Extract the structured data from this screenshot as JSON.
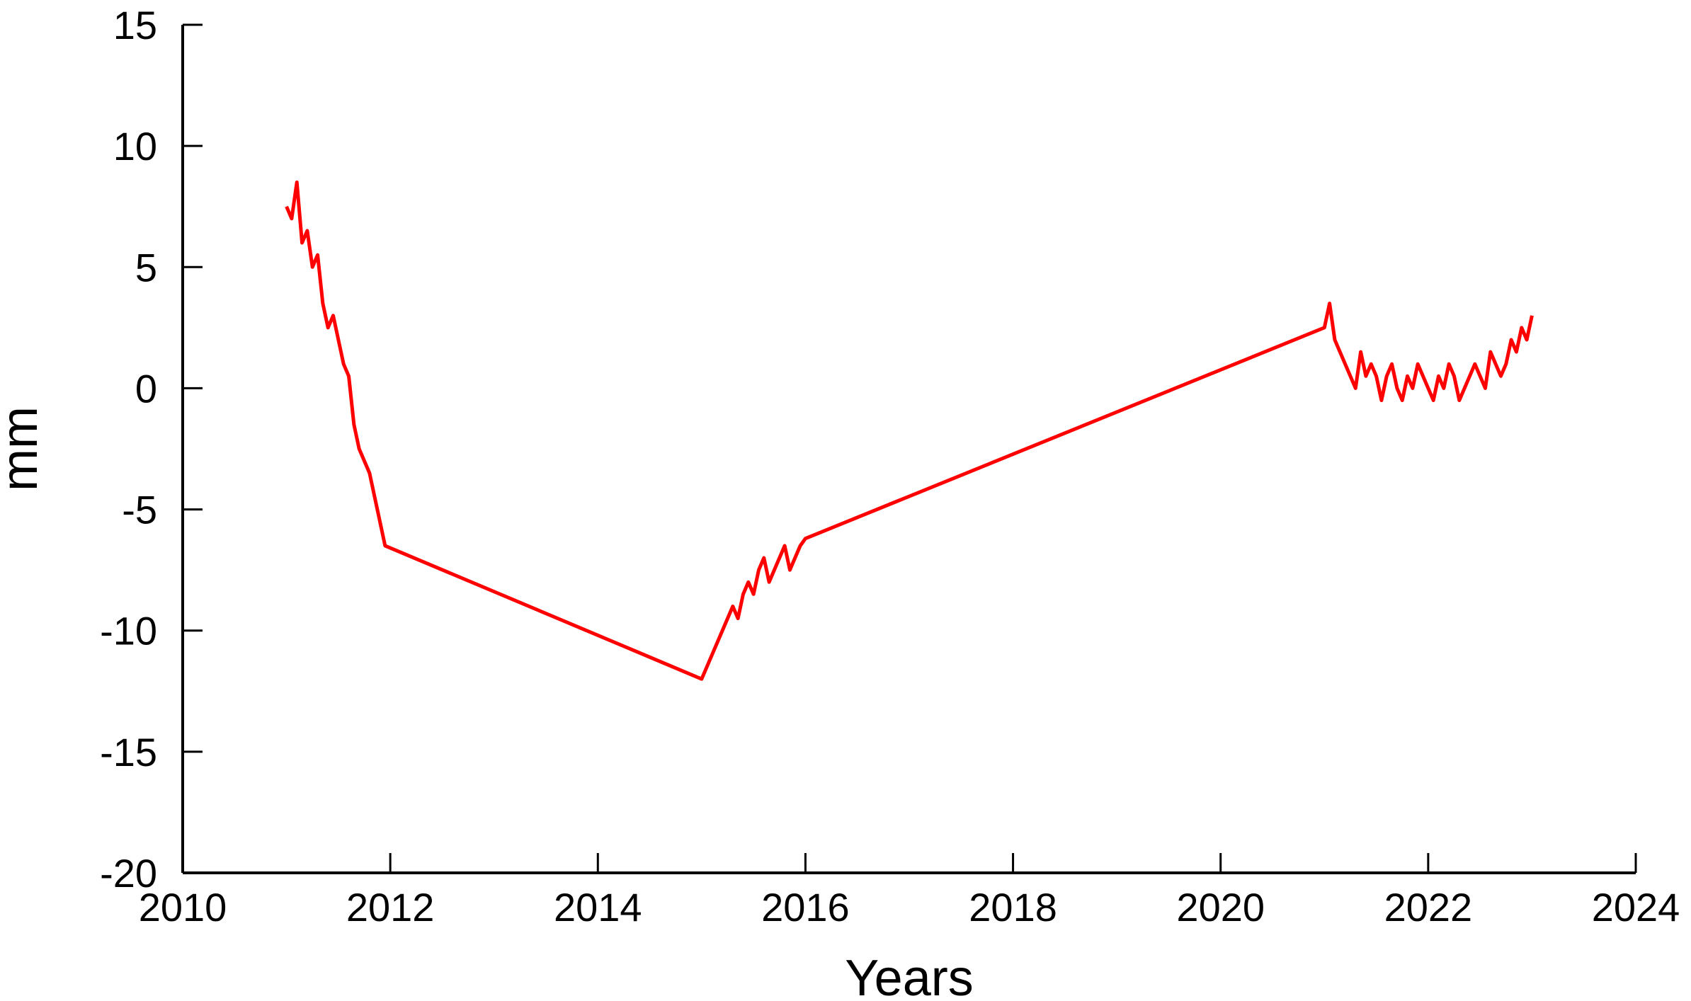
{
  "chart_data": {
    "type": "line",
    "title": "",
    "xlabel": "Years",
    "ylabel": "mm",
    "xlim": [
      2010,
      2024
    ],
    "ylim": [
      -20,
      15
    ],
    "xticks": [
      2010,
      2012,
      2014,
      2016,
      2018,
      2020,
      2022,
      2024
    ],
    "yticks": [
      -20,
      -15,
      -10,
      -5,
      0,
      5,
      10,
      15
    ],
    "xtick_labels": [
      "2010",
      "2012",
      "2014",
      "2016",
      "2018",
      "2020",
      "2022",
      "2024"
    ],
    "ytick_labels": [
      "-20",
      "-15",
      "-10",
      "-5",
      "0",
      "5",
      "10",
      "15"
    ],
    "grid": false,
    "legend": "none",
    "series_color": "#ff0000",
    "series": [
      {
        "x": [
          2011.0,
          2011.05,
          2011.1,
          2011.15,
          2011.2,
          2011.25,
          2011.3,
          2011.35,
          2011.4,
          2011.45,
          2011.5,
          2011.55,
          2011.6,
          2011.65,
          2011.7,
          2011.75,
          2011.8,
          2011.85,
          2011.9,
          2011.95,
          2015.0,
          2015.05,
          2015.1,
          2015.15,
          2015.2,
          2015.25,
          2015.3,
          2015.35,
          2015.4,
          2015.45,
          2015.5,
          2015.55,
          2015.6,
          2015.65,
          2015.7,
          2015.75,
          2015.8,
          2015.85,
          2015.9,
          2015.95,
          2016.0,
          2021.0,
          2021.05,
          2021.1,
          2021.15,
          2021.2,
          2021.25,
          2021.3,
          2021.35,
          2021.4,
          2021.45,
          2021.5,
          2021.55,
          2021.6,
          2021.65,
          2021.7,
          2021.75,
          2021.8,
          2021.85,
          2021.9,
          2021.95,
          2022.0,
          2022.05,
          2022.1,
          2022.15,
          2022.2,
          2022.25,
          2022.3,
          2022.35,
          2022.4,
          2022.45,
          2022.5,
          2022.55,
          2022.6,
          2022.65,
          2022.7,
          2022.75,
          2022.8,
          2022.85,
          2022.9,
          2022.95,
          2023.0
        ],
        "y": [
          7.5,
          7.0,
          8.5,
          6.0,
          6.5,
          5.0,
          5.5,
          3.5,
          2.5,
          3.0,
          2.0,
          1.0,
          0.5,
          -1.5,
          -2.5,
          -3.0,
          -3.5,
          -4.5,
          -5.5,
          -6.5,
          -12.0,
          -11.5,
          -11.0,
          -10.5,
          -10.0,
          -9.5,
          -9.0,
          -9.5,
          -8.5,
          -8.0,
          -8.5,
          -7.5,
          -7.0,
          -8.0,
          -7.5,
          -7.0,
          -6.5,
          -7.5,
          -7.0,
          -6.5,
          -6.2,
          2.5,
          3.5,
          2.0,
          1.5,
          1.0,
          0.5,
          0.0,
          1.5,
          0.5,
          1.0,
          0.5,
          -0.5,
          0.5,
          1.0,
          0.0,
          -0.5,
          0.5,
          0.0,
          1.0,
          0.5,
          0.0,
          -0.5,
          0.5,
          0.0,
          1.0,
          0.5,
          -0.5,
          0.0,
          0.5,
          1.0,
          0.5,
          0.0,
          1.5,
          1.0,
          0.5,
          1.0,
          2.0,
          1.5,
          2.5,
          2.0,
          3.0
        ]
      }
    ]
  }
}
